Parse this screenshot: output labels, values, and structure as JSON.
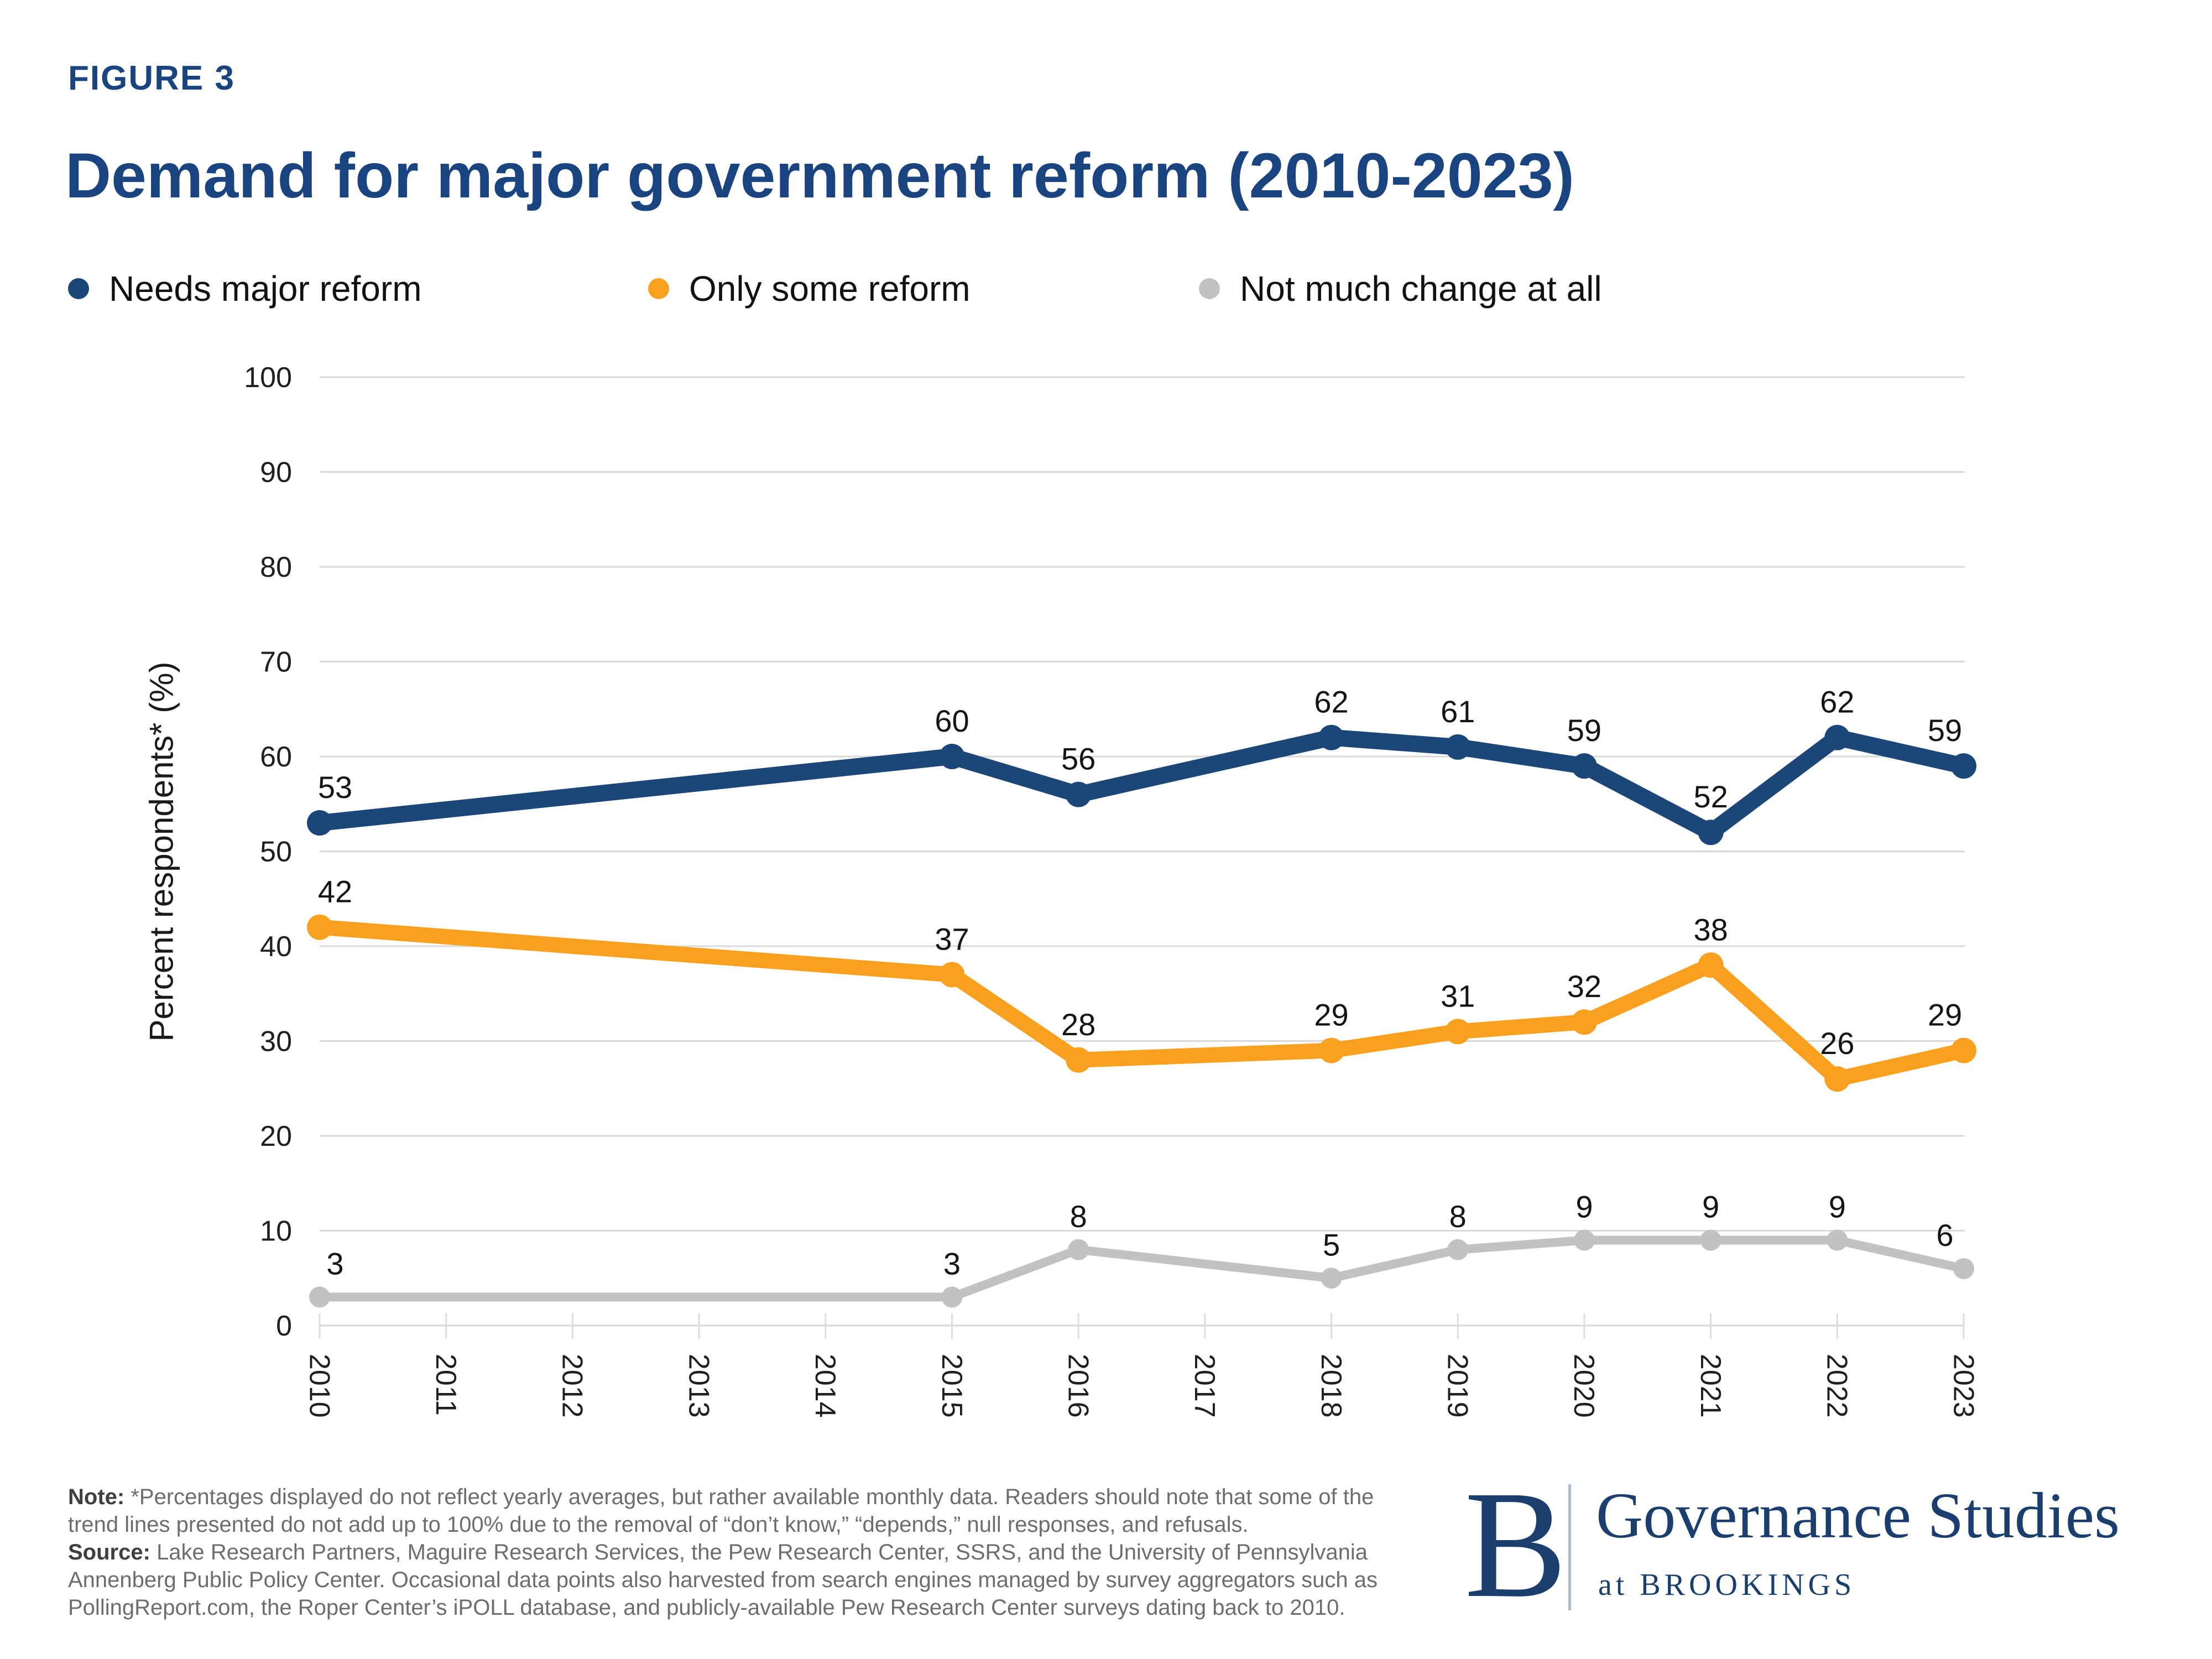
{
  "figure_label": "FIGURE 3",
  "title": "Demand for major government reform (2010-2023)",
  "legend": [
    {
      "label": "Needs major reform",
      "color": "#1b4778"
    },
    {
      "label": "Only some reform",
      "color": "#f9a11f"
    },
    {
      "label": "Not much change at all",
      "color": "#c2c2c2"
    }
  ],
  "chart_data": {
    "type": "line",
    "title": "Demand for major government reform (2010-2023)",
    "xlabel": "",
    "ylabel": "Percent respondents* (%)",
    "ylim": [
      0,
      100
    ],
    "ytick_step": 10,
    "yticks": [
      0,
      10,
      20,
      30,
      40,
      50,
      60,
      70,
      80,
      90,
      100
    ],
    "xticks": [
      "2010",
      "2011",
      "2012",
      "2013",
      "2014",
      "2015",
      "2016",
      "2017",
      "2018",
      "2019",
      "2020",
      "2021",
      "2022",
      "2023"
    ],
    "grid": true,
    "legend_position": "top",
    "series": [
      {
        "name": "Needs major reform",
        "color": "#1b4778",
        "years": [
          2010,
          2015,
          2016,
          2018,
          2019,
          2020,
          2021,
          2022,
          2023
        ],
        "values": [
          53,
          60,
          56,
          62,
          61,
          59,
          52,
          62,
          59
        ]
      },
      {
        "name": "Only some reform",
        "color": "#f9a11f",
        "years": [
          2010,
          2015,
          2016,
          2018,
          2019,
          2020,
          2021,
          2022,
          2023
        ],
        "values": [
          42,
          37,
          28,
          29,
          31,
          32,
          38,
          26,
          29
        ]
      },
      {
        "name": "Not much change at all",
        "color": "#c2c2c2",
        "years": [
          2010,
          2015,
          2016,
          2018,
          2019,
          2020,
          2021,
          2022,
          2023
        ],
        "values": [
          3,
          3,
          8,
          5,
          8,
          9,
          9,
          9,
          6
        ]
      }
    ]
  },
  "note": {
    "label": "Note:",
    "lines": [
      "*Percentages displayed do not reflect yearly averages, but rather available monthly data. Readers should note that some of the",
      "trend lines presented do not add up to 100% due to the removal of “don’t know,” “depends,” null responses, and refusals."
    ]
  },
  "source": {
    "label": "Source:",
    "lines": [
      "Lake Research Partners, Maguire Research Services, the Pew Research Center, SSRS, and the University of Pennsylvania",
      "Annenberg Public Policy Center. Occasional data points also harvested from search engines managed by survey aggregators such as",
      "PollingReport.com, the Roper Center’s iPOLL database, and publicly-available Pew Research Center surveys dating back to 2010."
    ]
  },
  "logo": {
    "b": "B",
    "name": "Governance Studies",
    "sub": "at BROOKINGS"
  },
  "colors": {
    "navy_title": "#1a4480",
    "series_blue": "#1b4778",
    "series_orange": "#f9a11f",
    "series_gray": "#c2c2c2",
    "gridline": "#d9d9d9",
    "tick": "#dcdcdc",
    "tick_label": "#1f1f1f",
    "data_label": "#141414",
    "note_text": "#6d6d6d",
    "logo_navy": "#1a3e6e"
  }
}
